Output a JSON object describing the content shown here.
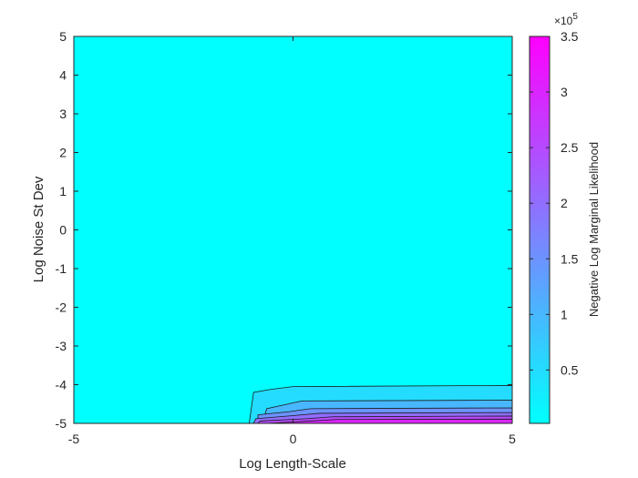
{
  "chart_data": {
    "type": "heatmap",
    "subtype": "filled-contour",
    "title": "",
    "xlabel": "Log Length-Scale",
    "ylabel": "Log Noise St Dev",
    "xlim": [
      -5,
      5
    ],
    "ylim": [
      -5,
      5
    ],
    "xticks": [
      "-5",
      "0",
      "5"
    ],
    "yticks": [
      "5",
      "4",
      "3",
      "2",
      "1",
      "0",
      "-1",
      "-2",
      "-3",
      "-4",
      "-5"
    ],
    "colorbar": {
      "label": "Negative Log Marginal Likelihood",
      "multiplier": "×10",
      "exponent": "5",
      "ticks": [
        "3.5",
        "3",
        "2.5",
        "2",
        "1.5",
        "1",
        "0.5"
      ],
      "range": [
        0.02,
        3.5
      ],
      "colormap": "cool",
      "color_low": "#00ffff",
      "color_high": "#ff00ff"
    },
    "contour_levels": [
      {
        "value": 0.5,
        "boundary": [
          [
            -1.0,
            -5.0
          ],
          [
            -0.9,
            -4.2
          ],
          [
            -0.5,
            -4.12
          ],
          [
            0.0,
            -4.05
          ],
          [
            5.0,
            -4.02
          ]
        ]
      },
      {
        "value": 1.0,
        "boundary": [
          [
            -0.7,
            -5.0
          ],
          [
            -0.6,
            -4.62
          ],
          [
            -0.2,
            -4.52
          ],
          [
            0.2,
            -4.42
          ],
          [
            5.0,
            -4.4
          ]
        ]
      },
      {
        "value": 1.5,
        "boundary": [
          [
            -0.8,
            -5.0
          ],
          [
            -0.8,
            -4.78
          ],
          [
            -0.1,
            -4.7
          ],
          [
            0.4,
            -4.62
          ],
          [
            5.0,
            -4.6
          ]
        ]
      },
      {
        "value": 2.0,
        "boundary": [
          [
            -0.9,
            -5.0
          ],
          [
            -0.85,
            -4.88
          ],
          [
            0.0,
            -4.8
          ],
          [
            0.6,
            -4.74
          ],
          [
            5.0,
            -4.72
          ]
        ]
      },
      {
        "value": 2.5,
        "boundary": [
          [
            -0.8,
            -5.0
          ],
          [
            -0.75,
            -4.94
          ],
          [
            0.3,
            -4.88
          ],
          [
            0.9,
            -4.83
          ],
          [
            5.0,
            -4.81
          ]
        ]
      },
      {
        "value": 3.0,
        "boundary": [
          [
            -0.6,
            -5.0
          ],
          [
            0.4,
            -4.94
          ],
          [
            1.0,
            -4.9
          ],
          [
            5.0,
            -4.89
          ]
        ]
      }
    ]
  }
}
